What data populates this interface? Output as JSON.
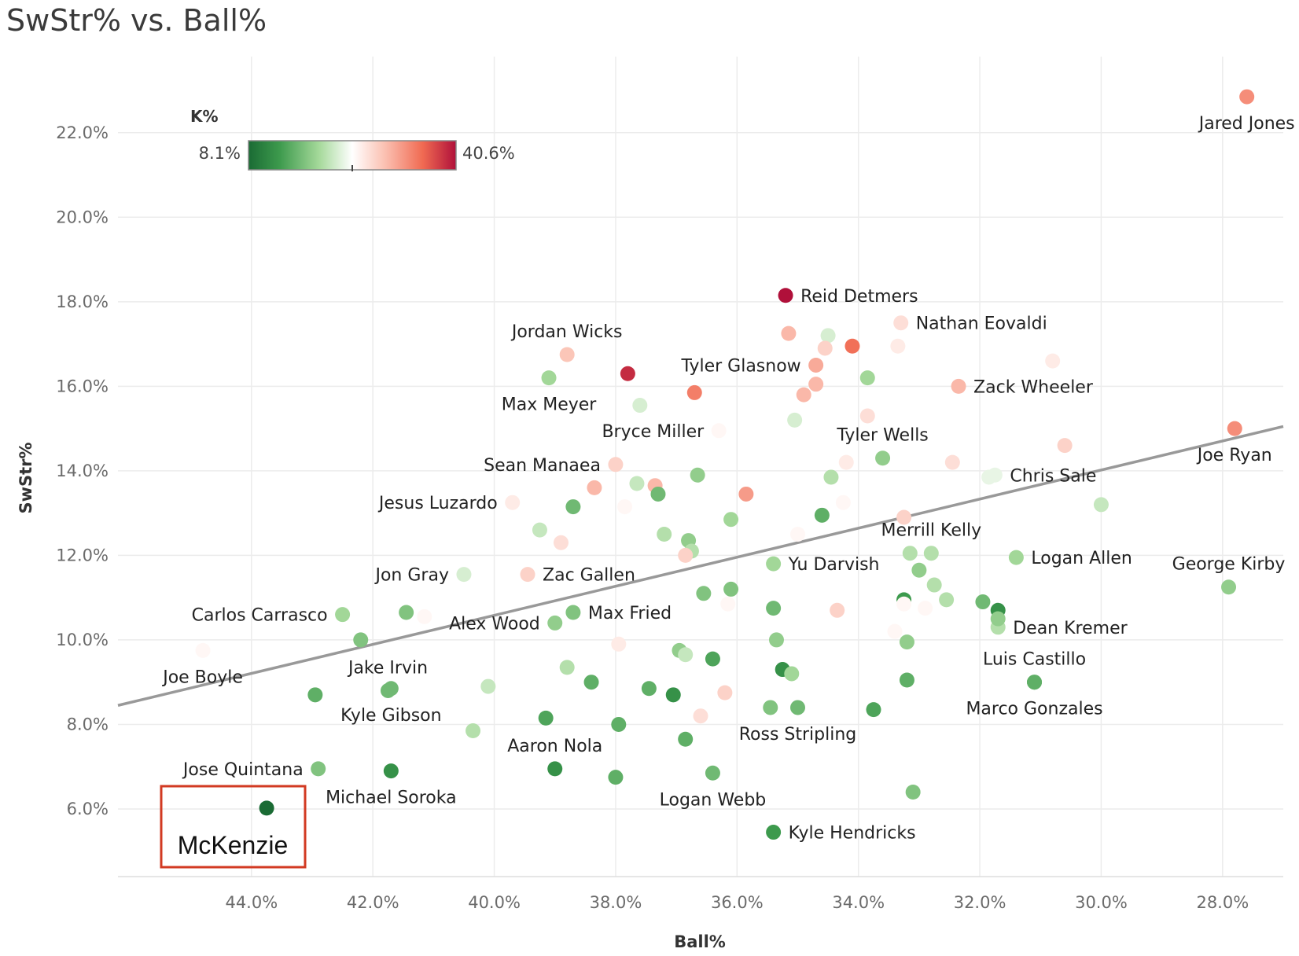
{
  "chart_data": {
    "type": "scatter",
    "title": "SwStr% vs. Ball%",
    "xlabel": "Ball%",
    "ylabel": "SwStr%",
    "x_reversed": true,
    "xlim": [
      46.2,
      27.0
    ],
    "ylim": [
      4.4,
      23.8
    ],
    "xticks": [
      44,
      42,
      40,
      38,
      36,
      34,
      32,
      30,
      28
    ],
    "xtick_labels": [
      "44.0%",
      "42.0%",
      "40.0%",
      "38.0%",
      "36.0%",
      "34.0%",
      "32.0%",
      "30.0%",
      "28.0%"
    ],
    "yticks": [
      6,
      8,
      10,
      12,
      14,
      16,
      18,
      20,
      22
    ],
    "ytick_labels": [
      "6.0%",
      "8.0%",
      "10.0%",
      "12.0%",
      "14.0%",
      "16.0%",
      "18.0%",
      "20.0%",
      "22.0%"
    ],
    "grid": true,
    "color_legend": {
      "title": "K%",
      "min_label": "8.1%",
      "max_label": "40.6%",
      "min": 8.1,
      "max": 40.6,
      "low_color": "#1a6b34",
      "mid_color": "#ffffff",
      "high_color": "#b0103a",
      "position": "top-left"
    },
    "trend_line": {
      "color": "#999999",
      "x": [
        46.2,
        27.0
      ],
      "y": [
        8.45,
        15.05
      ]
    },
    "points": [
      {
        "x": 27.6,
        "y": 22.85,
        "k": 33,
        "label": "Jared Jones",
        "label_pos": "below"
      },
      {
        "x": 35.2,
        "y": 18.15,
        "k": 40.6,
        "label": "Reid Detmers",
        "label_pos": "right"
      },
      {
        "x": 33.3,
        "y": 17.5,
        "k": 27,
        "label": "Nathan Eovaldi",
        "label_pos": "right"
      },
      {
        "x": 38.8,
        "y": 16.75,
        "k": 29,
        "label": "Jordan Wicks",
        "label_pos": "above"
      },
      {
        "x": 34.7,
        "y": 16.5,
        "k": 31,
        "label": "Tyler Glasnow",
        "label_pos": "left"
      },
      {
        "x": 32.35,
        "y": 16.0,
        "k": 30,
        "label": "Zack Wheeler",
        "label_pos": "right"
      },
      {
        "x": 39.1,
        "y": 16.2,
        "k": 19,
        "label": "Max Meyer",
        "label_pos": "below"
      },
      {
        "x": 36.3,
        "y": 14.95,
        "k": 25,
        "label": "Bryce Miller",
        "label_pos": "left"
      },
      {
        "x": 33.6,
        "y": 14.3,
        "k": 18,
        "label": "Tyler Wells",
        "label_pos": "above"
      },
      {
        "x": 27.8,
        "y": 15.0,
        "k": 33,
        "label": "Joe Ryan",
        "label_pos": "below"
      },
      {
        "x": 38.0,
        "y": 14.15,
        "k": 28,
        "label": "Sean Manaea",
        "label_pos": "left"
      },
      {
        "x": 31.75,
        "y": 13.9,
        "k": 23,
        "label": "Chris Sale",
        "label_pos": "right"
      },
      {
        "x": 39.7,
        "y": 13.25,
        "k": 26,
        "label": "Jesus Luzardo",
        "label_pos": "left"
      },
      {
        "x": 32.8,
        "y": 12.05,
        "k": 20,
        "label": "Merrill Kelly",
        "label_pos": "above"
      },
      {
        "x": 35.4,
        "y": 11.8,
        "k": 19,
        "label": "Yu Darvish",
        "label_pos": "right"
      },
      {
        "x": 31.4,
        "y": 11.95,
        "k": 19,
        "label": "Logan Allen",
        "label_pos": "right"
      },
      {
        "x": 40.5,
        "y": 11.55,
        "k": 22,
        "label": "Jon Gray",
        "label_pos": "left"
      },
      {
        "x": 39.45,
        "y": 11.55,
        "k": 28,
        "label": "Zac Gallen",
        "label_pos": "right"
      },
      {
        "x": 27.9,
        "y": 11.25,
        "k": 18,
        "label": "George Kirby",
        "label_pos": "above"
      },
      {
        "x": 42.5,
        "y": 10.6,
        "k": 19,
        "label": "Carlos Carrasco",
        "label_pos": "left"
      },
      {
        "x": 38.7,
        "y": 10.65,
        "k": 17,
        "label": "Max Fried",
        "label_pos": "right"
      },
      {
        "x": 39.0,
        "y": 10.4,
        "k": 18,
        "label": "Alex Wood",
        "label_pos": "left"
      },
      {
        "x": 31.7,
        "y": 10.3,
        "k": 20,
        "label": "Dean Kremer",
        "label_pos": "right"
      },
      {
        "x": 44.8,
        "y": 9.75,
        "k": 25,
        "label": "Joe Boyle",
        "label_pos": "below"
      },
      {
        "x": 41.75,
        "y": 8.8,
        "k": 16,
        "label": "Jake Irvin",
        "label_pos": "above"
      },
      {
        "x": 31.1,
        "y": 9.0,
        "k": 15,
        "label": "Luis Castillo",
        "label_pos": "above"
      },
      {
        "x": 41.7,
        "y": 8.85,
        "k": 16,
        "label": "Kyle Gibson",
        "label_pos": "below"
      },
      {
        "x": 31.1,
        "y": 9.0,
        "k": 15,
        "label": "Marco Gonzales",
        "label_pos": "below"
      },
      {
        "x": 39.0,
        "y": 6.95,
        "k": 12,
        "label": "Aaron Nola",
        "label_pos": "above"
      },
      {
        "x": 35.0,
        "y": 8.4,
        "k": 16,
        "label": "Ross Stripling",
        "label_pos": "below"
      },
      {
        "x": 42.9,
        "y": 6.95,
        "k": 17,
        "label": "Jose Quintana",
        "label_pos": "left"
      },
      {
        "x": 41.7,
        "y": 6.9,
        "k": 12,
        "label": "Michael Soroka",
        "label_pos": "below"
      },
      {
        "x": 36.4,
        "y": 6.85,
        "k": 16,
        "label": "Logan Webb",
        "label_pos": "below"
      },
      {
        "x": 35.4,
        "y": 5.45,
        "k": 13,
        "label": "Kyle Hendricks",
        "label_pos": "right"
      },
      {
        "x": 43.75,
        "y": 6.02,
        "k": 8.1,
        "label": "McKenzie",
        "label_pos": "none"
      },
      {
        "x": 37.8,
        "y": 16.3,
        "k": 39,
        "label": ""
      },
      {
        "x": 36.7,
        "y": 15.85,
        "k": 34,
        "label": ""
      },
      {
        "x": 35.15,
        "y": 17.25,
        "k": 30,
        "label": ""
      },
      {
        "x": 34.5,
        "y": 17.2,
        "k": 22,
        "label": ""
      },
      {
        "x": 34.55,
        "y": 16.9,
        "k": 28,
        "label": ""
      },
      {
        "x": 34.1,
        "y": 16.95,
        "k": 35,
        "label": ""
      },
      {
        "x": 33.35,
        "y": 16.95,
        "k": 26,
        "label": ""
      },
      {
        "x": 33.85,
        "y": 16.2,
        "k": 19,
        "label": ""
      },
      {
        "x": 34.7,
        "y": 16.05,
        "k": 30,
        "label": ""
      },
      {
        "x": 34.9,
        "y": 15.8,
        "k": 30,
        "label": ""
      },
      {
        "x": 30.8,
        "y": 16.6,
        "k": 26,
        "label": ""
      },
      {
        "x": 37.6,
        "y": 15.55,
        "k": 22,
        "label": ""
      },
      {
        "x": 35.05,
        "y": 15.2,
        "k": 22,
        "label": ""
      },
      {
        "x": 33.85,
        "y": 15.3,
        "k": 27,
        "label": ""
      },
      {
        "x": 30.6,
        "y": 14.6,
        "k": 28,
        "label": ""
      },
      {
        "x": 34.2,
        "y": 14.2,
        "k": 26,
        "label": ""
      },
      {
        "x": 32.45,
        "y": 14.2,
        "k": 27,
        "label": ""
      },
      {
        "x": 31.85,
        "y": 13.85,
        "k": 23,
        "label": ""
      },
      {
        "x": 36.65,
        "y": 13.9,
        "k": 18,
        "label": ""
      },
      {
        "x": 34.45,
        "y": 13.85,
        "k": 20,
        "label": ""
      },
      {
        "x": 37.65,
        "y": 13.7,
        "k": 21,
        "label": ""
      },
      {
        "x": 37.35,
        "y": 13.65,
        "k": 30,
        "label": ""
      },
      {
        "x": 38.35,
        "y": 13.6,
        "k": 30,
        "label": ""
      },
      {
        "x": 37.3,
        "y": 13.45,
        "k": 16,
        "label": ""
      },
      {
        "x": 35.85,
        "y": 13.45,
        "k": 32,
        "label": ""
      },
      {
        "x": 38.7,
        "y": 13.15,
        "k": 16,
        "label": ""
      },
      {
        "x": 37.85,
        "y": 13.15,
        "k": 25,
        "label": ""
      },
      {
        "x": 34.25,
        "y": 13.25,
        "k": 25,
        "label": ""
      },
      {
        "x": 30.0,
        "y": 13.2,
        "k": 21,
        "label": ""
      },
      {
        "x": 34.6,
        "y": 12.95,
        "k": 15,
        "label": ""
      },
      {
        "x": 33.25,
        "y": 12.9,
        "k": 28,
        "label": ""
      },
      {
        "x": 36.1,
        "y": 12.85,
        "k": 19,
        "label": ""
      },
      {
        "x": 39.25,
        "y": 12.6,
        "k": 21,
        "label": ""
      },
      {
        "x": 37.2,
        "y": 12.5,
        "k": 20,
        "label": ""
      },
      {
        "x": 35.0,
        "y": 12.5,
        "k": 25,
        "label": ""
      },
      {
        "x": 38.9,
        "y": 12.3,
        "k": 27,
        "label": ""
      },
      {
        "x": 36.8,
        "y": 12.35,
        "k": 18,
        "label": ""
      },
      {
        "x": 36.75,
        "y": 12.1,
        "k": 20,
        "label": ""
      },
      {
        "x": 36.85,
        "y": 12.0,
        "k": 28,
        "label": ""
      },
      {
        "x": 33.15,
        "y": 12.05,
        "k": 20,
        "label": ""
      },
      {
        "x": 33.0,
        "y": 11.65,
        "k": 18,
        "label": ""
      },
      {
        "x": 32.75,
        "y": 11.3,
        "k": 20,
        "label": ""
      },
      {
        "x": 36.1,
        "y": 11.2,
        "k": 17,
        "label": ""
      },
      {
        "x": 36.55,
        "y": 11.1,
        "k": 17,
        "label": ""
      },
      {
        "x": 32.55,
        "y": 10.95,
        "k": 20,
        "label": ""
      },
      {
        "x": 31.95,
        "y": 10.9,
        "k": 16,
        "label": ""
      },
      {
        "x": 33.25,
        "y": 10.95,
        "k": 13,
        "label": ""
      },
      {
        "x": 36.15,
        "y": 10.85,
        "k": 25,
        "label": ""
      },
      {
        "x": 33.25,
        "y": 10.85,
        "k": 25,
        "label": ""
      },
      {
        "x": 32.9,
        "y": 10.75,
        "k": 25,
        "label": ""
      },
      {
        "x": 35.4,
        "y": 10.75,
        "k": 16,
        "label": ""
      },
      {
        "x": 34.35,
        "y": 10.7,
        "k": 28,
        "label": ""
      },
      {
        "x": 31.7,
        "y": 10.7,
        "k": 12,
        "label": ""
      },
      {
        "x": 41.45,
        "y": 10.65,
        "k": 17,
        "label": ""
      },
      {
        "x": 41.15,
        "y": 10.55,
        "k": 25,
        "label": ""
      },
      {
        "x": 31.7,
        "y": 10.5,
        "k": 18,
        "label": ""
      },
      {
        "x": 33.4,
        "y": 10.2,
        "k": 25,
        "label": ""
      },
      {
        "x": 42.2,
        "y": 10.0,
        "k": 17,
        "label": ""
      },
      {
        "x": 35.35,
        "y": 10.0,
        "k": 18,
        "label": ""
      },
      {
        "x": 33.2,
        "y": 9.95,
        "k": 18,
        "label": ""
      },
      {
        "x": 37.95,
        "y": 9.9,
        "k": 26,
        "label": ""
      },
      {
        "x": 36.95,
        "y": 9.75,
        "k": 18,
        "label": ""
      },
      {
        "x": 36.85,
        "y": 9.65,
        "k": 21,
        "label": ""
      },
      {
        "x": 36.4,
        "y": 9.55,
        "k": 14,
        "label": ""
      },
      {
        "x": 38.8,
        "y": 9.35,
        "k": 20,
        "label": ""
      },
      {
        "x": 35.25,
        "y": 9.3,
        "k": 12,
        "label": ""
      },
      {
        "x": 35.1,
        "y": 9.2,
        "k": 19,
        "label": ""
      },
      {
        "x": 38.4,
        "y": 9.0,
        "k": 15,
        "label": ""
      },
      {
        "x": 33.2,
        "y": 9.05,
        "k": 15,
        "label": ""
      },
      {
        "x": 40.1,
        "y": 8.9,
        "k": 21,
        "label": ""
      },
      {
        "x": 37.45,
        "y": 8.85,
        "k": 15,
        "label": ""
      },
      {
        "x": 36.2,
        "y": 8.75,
        "k": 28,
        "label": ""
      },
      {
        "x": 37.05,
        "y": 8.7,
        "k": 12,
        "label": ""
      },
      {
        "x": 42.95,
        "y": 8.7,
        "k": 15,
        "label": ""
      },
      {
        "x": 35.45,
        "y": 8.4,
        "k": 17,
        "label": ""
      },
      {
        "x": 33.75,
        "y": 8.35,
        "k": 14,
        "label": ""
      },
      {
        "x": 36.6,
        "y": 8.2,
        "k": 27,
        "label": ""
      },
      {
        "x": 39.15,
        "y": 8.15,
        "k": 14,
        "label": ""
      },
      {
        "x": 37.95,
        "y": 8.0,
        "k": 15,
        "label": ""
      },
      {
        "x": 40.35,
        "y": 7.85,
        "k": 20,
        "label": ""
      },
      {
        "x": 36.85,
        "y": 7.65,
        "k": 15,
        "label": ""
      },
      {
        "x": 38.0,
        "y": 6.75,
        "k": 15,
        "label": ""
      },
      {
        "x": 33.1,
        "y": 6.4,
        "k": 17,
        "label": ""
      }
    ],
    "annotation_box": {
      "label": "McKenzie",
      "color": "#d23a22"
    }
  }
}
